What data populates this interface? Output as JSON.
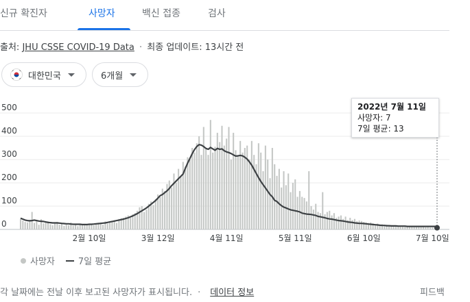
{
  "tabs": [
    {
      "label": "신규 확진자"
    },
    {
      "label": "사망자"
    },
    {
      "label": "백신 접종"
    },
    {
      "label": "검사"
    }
  ],
  "active_tab": 1,
  "source": {
    "prefix": "출처:",
    "link": "JHU CSSE COVID-19 Data",
    "separator": "·",
    "updated": "최종 업데이트: 13시간 전"
  },
  "filters": {
    "country": "대한민국",
    "period": "6개월"
  },
  "tooltip": {
    "date": "2022년 7월 11일",
    "deaths": "사망자: 7",
    "avg": "7일 평균: 13"
  },
  "legend": {
    "bars": "사망자",
    "line": "7일 평균"
  },
  "footer": {
    "note": "각 날짜에는 전날 이후 보고된 사망자가 표시됩니다.",
    "separator": "·",
    "link": "데이터 정보",
    "feedback": "피드백"
  },
  "colors": {
    "bar": "#c4c7c5",
    "line": "#3c4043",
    "accent": "#1a73e8"
  },
  "chart_data": {
    "type": "bar",
    "title": "",
    "ylim": [
      0,
      500
    ],
    "yticks": [
      0,
      100,
      200,
      300,
      400,
      500
    ],
    "xticks": [
      "2월 10일",
      "3월 12일",
      "4월 11일",
      "5월 11일",
      "6월 10일",
      "7월 10일"
    ],
    "x_start": "2022-01-11",
    "x_end": "2022-07-11",
    "grid": true,
    "legend_position": "bottom-left",
    "series": [
      {
        "name": "사망자",
        "kind": "bar",
        "values": [
          44,
          38,
          32,
          30,
          40,
          75,
          28,
          35,
          20,
          44,
          26,
          30,
          35,
          22,
          18,
          28,
          32,
          20,
          24,
          15,
          20,
          18,
          30,
          16,
          20,
          14,
          20,
          18,
          24,
          20,
          20,
          22,
          18,
          24,
          28,
          30,
          20,
          34,
          25,
          30,
          35,
          40,
          28,
          45,
          48,
          50,
          55,
          60,
          50,
          65,
          70,
          80,
          95,
          100,
          75,
          85,
          110,
          120,
          105,
          130,
          150,
          140,
          175,
          165,
          195,
          210,
          180,
          240,
          200,
          260,
          230,
          290,
          270,
          310,
          300,
          350,
          330,
          370,
          400,
          320,
          440,
          345,
          320,
          470,
          330,
          355,
          415,
          375,
          445,
          360,
          390,
          440,
          300,
          415,
          340,
          320,
          380,
          330,
          350,
          360,
          300,
          380,
          320,
          280,
          370,
          330,
          250,
          360,
          300,
          220,
          350,
          280,
          230,
          260,
          180,
          250,
          190,
          240,
          160,
          200,
          215,
          140,
          165,
          140,
          135,
          120,
          250,
          100,
          85,
          110,
          75,
          70,
          160,
          65,
          75,
          80,
          60,
          70,
          50,
          55,
          60,
          45,
          55,
          40,
          50,
          40,
          45,
          35,
          38,
          36,
          32,
          30,
          28,
          30,
          26,
          22,
          25,
          20,
          22,
          18,
          20,
          16,
          18,
          15,
          14,
          16,
          12,
          15,
          13,
          14,
          12,
          12,
          10,
          12,
          11,
          10,
          11,
          9,
          10,
          8,
          8,
          10,
          7
        ]
      },
      {
        "name": "7일 평균",
        "kind": "line",
        "values": [
          48,
          44,
          40,
          38,
          37,
          38,
          40,
          38,
          36,
          35,
          34,
          32,
          30,
          29,
          28,
          28,
          28,
          27,
          26,
          25,
          24,
          24,
          23,
          22,
          22,
          22,
          22,
          21,
          21,
          21,
          22,
          22,
          23,
          24,
          25,
          26,
          27,
          28,
          30,
          32,
          34,
          36,
          38,
          40,
          42,
          44,
          47,
          50,
          54,
          58,
          63,
          68,
          74,
          80,
          86,
          92,
          100,
          108,
          116,
          124,
          134,
          145,
          150,
          158,
          166,
          176,
          188,
          198,
          208,
          218,
          228,
          238,
          262,
          285,
          305,
          325,
          343,
          356,
          364,
          362,
          356,
          348,
          344,
          352,
          346,
          340,
          348,
          344,
          346,
          338,
          333,
          330,
          326,
          320,
          315,
          316,
          318,
          316,
          310,
          302,
          290,
          276,
          258,
          240,
          222,
          206,
          192,
          178,
          164,
          150,
          140,
          125,
          120,
          110,
          102,
          96,
          92,
          88,
          84,
          82,
          80,
          78,
          75,
          70,
          68,
          66,
          65,
          64,
          62,
          60,
          56,
          54,
          52,
          50,
          47,
          45,
          44,
          42,
          40,
          38,
          37,
          36,
          34,
          32,
          31,
          30,
          28,
          27,
          26,
          26,
          25,
          24,
          23,
          22,
          21,
          20,
          19,
          18,
          17,
          17,
          16,
          16,
          15,
          15,
          15,
          14,
          14,
          14,
          14,
          13,
          13,
          13,
          13,
          13,
          13,
          13,
          13,
          13,
          13,
          13,
          13,
          13,
          13
        ]
      }
    ]
  }
}
